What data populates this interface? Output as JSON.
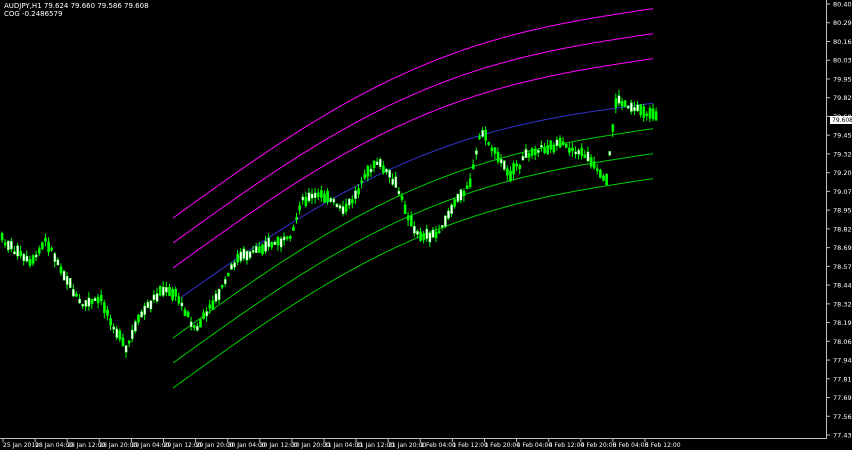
{
  "header": {
    "symbol_line": "AUDJPY,H1  79.624 79.660 79.586 79.608",
    "indicator_line": "COG -0.2486579"
  },
  "colors": {
    "background": "#000000",
    "bull_candle": "#00ff00",
    "bear_candle": "#ffffff",
    "upper_bands": "#ff00ff",
    "lower_bands": "#00cc00",
    "center_line": "#3333cc",
    "price_tag_bg": "#ffffff",
    "axis_text": "#ffffff"
  },
  "price_axis": {
    "labels": [
      "80.405",
      "80.290",
      "80.160",
      "80.035",
      "79.955",
      "79.825",
      "79.600",
      "79.455",
      "79.325",
      "79.200",
      "79.075",
      "78.950",
      "78.825",
      "78.695",
      "78.570",
      "78.445",
      "78.320",
      "78.195",
      "78.065",
      "77.940",
      "77.815",
      "77.690",
      "77.565",
      "77.435"
    ],
    "current_price": "79.608"
  },
  "time_axis": {
    "labels": [
      "25 Jan 2019",
      "28 Jan 04:00",
      "28 Jan 12:00",
      "28 Jan 20:00",
      "29 Jan 04:00",
      "29 Jan 12:00",
      "29 Jan 20:00",
      "30 Jan 04:00",
      "30 Jan 12:00",
      "30 Jan 20:00",
      "31 Jan 04:00",
      "31 Jan 12:00",
      "31 Jan 20:00",
      "1 Feb 04:00",
      "1 Feb 12:00",
      "1 Feb 20:00",
      "4 Feb 04:00",
      "4 Feb 12:00",
      "4 Feb 20:00",
      "5 Feb 04:00",
      "5 Feb 12:00"
    ]
  }
}
